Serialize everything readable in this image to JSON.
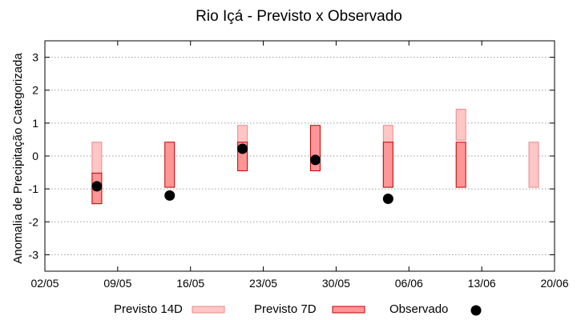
{
  "chart_data": {
    "type": "bar",
    "title": "Rio Içá - Previsto x Observado",
    "xlabel": "",
    "ylabel": "Anomalia de Precipitação Categorizada",
    "x_ticks": [
      "02/05",
      "09/05",
      "16/05",
      "23/05",
      "30/05",
      "06/06",
      "13/06",
      "20/06"
    ],
    "x_range_days": [
      0,
      49
    ],
    "ylim": [
      -3.5,
      3.5
    ],
    "y_ticks": [
      -3,
      -2,
      -1,
      0,
      1,
      2,
      3
    ],
    "grid": true,
    "legend_position": "bottom",
    "series": [
      {
        "name": "Previsto 14D",
        "kind": "range",
        "color_fill": "#ffc6c6",
        "color_stroke": "#e88a8a",
        "points": [
          {
            "x_day": 5,
            "low": -1.45,
            "high": 0.42
          },
          {
            "x_day": 19,
            "low": 0.22,
            "high": 0.93
          },
          {
            "x_day": 33,
            "low": -0.95,
            "high": 0.93
          },
          {
            "x_day": 40,
            "low": 0.48,
            "high": 1.42
          },
          {
            "x_day": 47,
            "low": -0.95,
            "high": 0.42
          }
        ]
      },
      {
        "name": "Previsto 7D",
        "kind": "range",
        "color_fill": "#ff9696",
        "color_stroke": "#c00000",
        "points": [
          {
            "x_day": 5,
            "low": -1.45,
            "high": -0.52
          },
          {
            "x_day": 12,
            "low": -0.95,
            "high": 0.42
          },
          {
            "x_day": 19,
            "low": -0.45,
            "high": 0.42
          },
          {
            "x_day": 26,
            "low": -0.45,
            "high": 0.93
          },
          {
            "x_day": 33,
            "low": -0.95,
            "high": 0.42
          },
          {
            "x_day": 40,
            "low": -0.95,
            "high": 0.42
          }
        ]
      },
      {
        "name": "Observado",
        "kind": "point",
        "color_fill": "#000000",
        "points": [
          {
            "x_day": 5,
            "y": -0.92
          },
          {
            "x_day": 12,
            "y": -1.2
          },
          {
            "x_day": 19,
            "y": 0.22
          },
          {
            "x_day": 26,
            "y": -0.12
          },
          {
            "x_day": 33,
            "y": -1.3
          }
        ]
      }
    ]
  }
}
